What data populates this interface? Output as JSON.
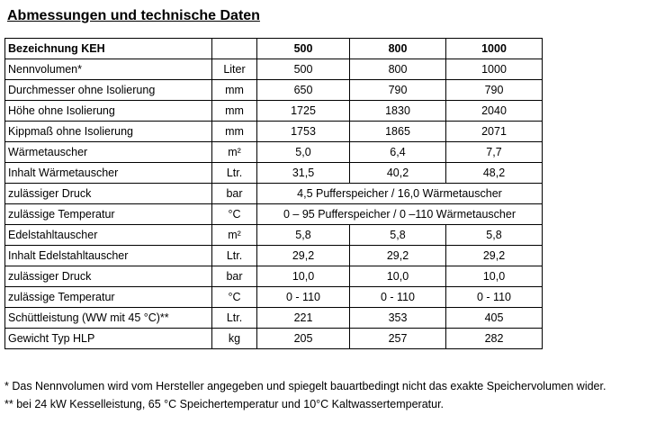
{
  "title": "Abmessungen und technische Daten",
  "header": [
    "Bezeichnung KEH",
    "",
    "500",
    "800",
    "1000"
  ],
  "rows": [
    {
      "label": "Nennvolumen*",
      "unit": "Liter",
      "values": [
        "500",
        "800",
        "1000"
      ]
    },
    {
      "label": "Durchmesser ohne Isolierung",
      "unit": "mm",
      "values": [
        "650",
        "790",
        "790"
      ]
    },
    {
      "label": "Höhe ohne Isolierung",
      "unit": "mm",
      "values": [
        "1725",
        "1830",
        "2040"
      ]
    },
    {
      "label": "Kippmaß ohne Isolierung",
      "unit": "mm",
      "values": [
        "1753",
        "1865",
        "2071"
      ]
    },
    {
      "label": "Wärmetauscher",
      "unit": "m²",
      "values": [
        "5,0",
        "6,4",
        "7,7"
      ]
    },
    {
      "label": "Inhalt Wärmetauscher",
      "unit": "Ltr.",
      "values": [
        "31,5",
        "40,2",
        "48,2"
      ]
    },
    {
      "label": "zulässiger Druck",
      "unit": "bar",
      "span": "4,5 Pufferspeicher / 16,0 Wärmetauscher"
    },
    {
      "label": "zulässige Temperatur",
      "unit": "°C",
      "span": "0 – 95 Pufferspeicher / 0 –110 Wärmetauscher"
    },
    {
      "label": "Edelstahltauscher",
      "unit": "m²",
      "values": [
        "5,8",
        "5,8",
        "5,8"
      ]
    },
    {
      "label": "Inhalt Edelstahltauscher",
      "unit": "Ltr.",
      "values": [
        "29,2",
        "29,2",
        "29,2"
      ]
    },
    {
      "label": "zulässiger Druck",
      "unit": "bar",
      "values": [
        "10,0",
        "10,0",
        "10,0"
      ]
    },
    {
      "label": "zulässige Temperatur",
      "unit": "°C",
      "values": [
        "0 - 110",
        "0 - 110",
        "0 - 110"
      ]
    },
    {
      "label": "Schüttleistung (WW mit 45 °C)**",
      "unit": "Ltr.",
      "values": [
        "221",
        "353",
        "405"
      ]
    },
    {
      "label": "Gewicht Typ HLP",
      "unit": "kg",
      "values": [
        "205",
        "257",
        "282"
      ]
    }
  ],
  "footnotes": [
    "* Das Nennvolumen wird vom Hersteller angegeben und spiegelt bauartbedingt nicht das exakte Speichervolumen wider.",
    "** bei 24 kW Kesselleistung, 65 °C Speichertemperatur und 10°C Kaltwassertemperatur."
  ]
}
